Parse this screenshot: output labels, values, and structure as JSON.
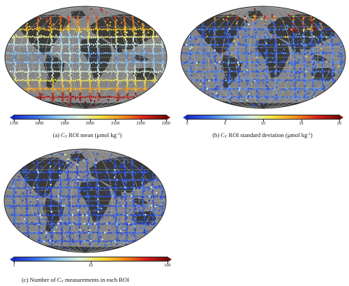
{
  "panels": [
    {
      "id": "a",
      "caption_prefix": "(a) C",
      "caption_sub": "T",
      "caption_mid": " ROI mean (μmol kg",
      "caption_sup": "-1",
      "caption_end": ")",
      "ticks": [
        "1700",
        "1800",
        "1900",
        "2000",
        "2100",
        "2200",
        "2300"
      ],
      "colormap": [
        "#1d2fd1",
        "#3b6fe8",
        "#8fc8ee",
        "#dff3df",
        "#f6e03a",
        "#f48f1e",
        "#d8231a",
        "#7a0a0a"
      ]
    },
    {
      "id": "b",
      "caption_prefix": "(b) C",
      "caption_sub": "T",
      "caption_mid": " ROI standard deviation (μmol kg",
      "caption_sup": "-1",
      "caption_end": ")",
      "ticks": [
        "0",
        "5",
        "10",
        "15",
        "20"
      ],
      "colormap": [
        "#1d2fd1",
        "#3b6fe8",
        "#8fc8ee",
        "#dff3df",
        "#f6e03a",
        "#f48f1e",
        "#d8231a",
        "#7a0a0a"
      ]
    },
    {
      "id": "c",
      "caption_prefix": "(c) Number of C",
      "caption_sub": "T",
      "caption_mid": " measurements in each ROI",
      "caption_sup": "",
      "caption_end": "",
      "ticks": [
        "1",
        "10",
        "100"
      ],
      "colormap": [
        "#1d2fd1",
        "#3b6fe8",
        "#8fc8ee",
        "#dff3df",
        "#f6e03a",
        "#f48f1e",
        "#d8231a",
        "#7a0a0a"
      ]
    }
  ],
  "colors": {
    "ocean": "#858585",
    "land": "#3a3a3a",
    "grid": "#b5b5b5",
    "frame": "#222222"
  }
}
